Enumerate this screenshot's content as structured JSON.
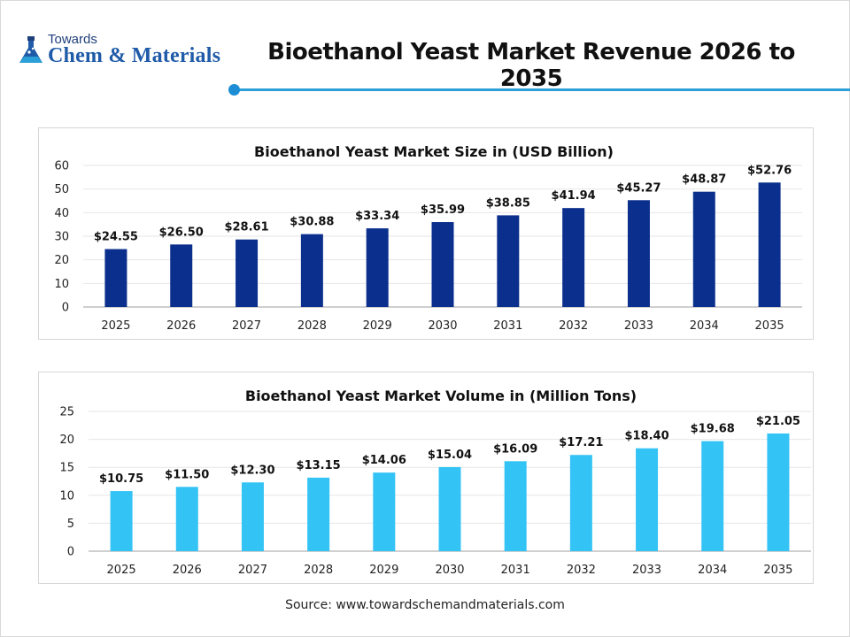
{
  "brand": {
    "top": "Towards",
    "main": "Chem & Materials"
  },
  "page_title": "Bioethanol Yeast Market Revenue 2026 to 2035",
  "source": "Source: www.towardschemandmaterials.com",
  "colors": {
    "accent": "#2a9fd8",
    "bar_revenue": "#0b2f8c",
    "bar_volume": "#33c3f5"
  },
  "chart_data": [
    {
      "type": "bar",
      "title": "Bioethanol Yeast Market Size in (USD Billion)",
      "categories": [
        "2025",
        "2026",
        "2027",
        "2028",
        "2029",
        "2030",
        "2031",
        "2032",
        "2033",
        "2034",
        "2035"
      ],
      "values": [
        24.55,
        26.5,
        28.61,
        30.88,
        33.34,
        35.99,
        38.85,
        41.94,
        45.27,
        48.87,
        52.76
      ],
      "data_labels": [
        "$24.55",
        "$26.50",
        "$28.61",
        "$30.88",
        "$33.34",
        "$35.99",
        "$38.85",
        "$41.94",
        "$45.27",
        "$48.87",
        "$52.76"
      ],
      "ylim": [
        0,
        60
      ],
      "yticks": [
        0,
        10,
        20,
        30,
        40,
        50,
        60
      ],
      "grid": true,
      "color": "#0b2f8c"
    },
    {
      "type": "bar",
      "title": "Bioethanol Yeast Market Volume in (Million Tons)",
      "categories": [
        "2025",
        "2026",
        "2027",
        "2028",
        "2029",
        "2030",
        "2031",
        "2032",
        "2033",
        "2034",
        "2035"
      ],
      "values": [
        10.75,
        11.5,
        12.3,
        13.15,
        14.06,
        15.04,
        16.09,
        17.21,
        18.4,
        19.68,
        21.05
      ],
      "data_labels": [
        "$10.75",
        "$11.50",
        "$12.30",
        "$13.15",
        "$14.06",
        "$15.04",
        "$16.09",
        "$17.21",
        "$18.40",
        "$19.68",
        "$21.05"
      ],
      "ylim": [
        0,
        25
      ],
      "yticks": [
        0,
        5,
        10,
        15,
        20,
        25
      ],
      "grid": true,
      "color": "#33c3f5"
    }
  ]
}
